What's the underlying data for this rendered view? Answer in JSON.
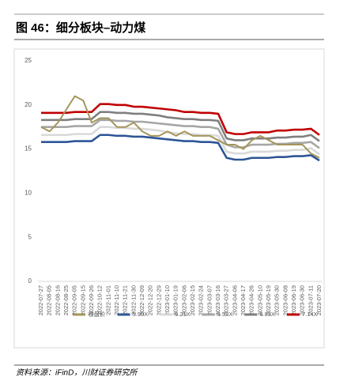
{
  "title": "图 46：细分板块–动力煤",
  "source": "资料来源：iFinD，川财证券研究所",
  "chart_data": {
    "type": "line",
    "categories": [
      "2022-07-27",
      "2022-08-05",
      "2022-08-16",
      "2022-08-25",
      "2022-09-05",
      "2022-09-15",
      "2022-09-26",
      "2022-10-12",
      "2022-11-01",
      "2022-11-10",
      "2022-11-21",
      "2022-11-30",
      "2022-12-09",
      "2022-12-20",
      "2022-12-29",
      "2023-01-10",
      "2023-01-19",
      "2023-02-06",
      "2023-02-15",
      "2023-02-24",
      "2023-03-07",
      "2023-03-16",
      "2023-03-27",
      "2023-04-06",
      "2023-04-17",
      "2023-04-26",
      "2023-05-10",
      "2023-05-19",
      "2023-05-30",
      "2023-06-08",
      "2023-06-19",
      "2023-06-30",
      "2023-07-11",
      "2023-07-20"
    ],
    "series": [
      {
        "name": "收盘价",
        "color": "#a5955a",
        "values": [
          17.5,
          17.0,
          18.0,
          19.5,
          21.0,
          20.5,
          18.0,
          18.5,
          18.5,
          17.5,
          17.5,
          18.0,
          17.0,
          16.5,
          16.5,
          17.0,
          16.5,
          17.0,
          16.5,
          16.5,
          16.5,
          16.0,
          15.5,
          15.5,
          15.0,
          16.0,
          16.5,
          16.0,
          15.5,
          15.5,
          15.5,
          15.5,
          14.5,
          14.0
        ]
      },
      {
        "name": "5.90X",
        "color": "#2e5597",
        "values": [
          15.8,
          15.8,
          15.8,
          15.8,
          15.9,
          15.9,
          15.9,
          16.6,
          16.6,
          16.5,
          16.5,
          16.4,
          16.4,
          16.3,
          16.2,
          16.1,
          16.0,
          15.9,
          15.9,
          15.8,
          15.8,
          15.7,
          14.0,
          13.8,
          13.8,
          14.0,
          14.0,
          14.0,
          14.1,
          14.1,
          14.2,
          14.2,
          14.3,
          13.7
        ]
      },
      {
        "name": "6.21X",
        "color": "#d9d9d9",
        "values": [
          16.6,
          16.6,
          16.6,
          16.6,
          16.7,
          16.7,
          16.7,
          17.5,
          17.5,
          17.4,
          17.4,
          17.3,
          17.3,
          17.2,
          17.1,
          16.9,
          16.8,
          16.7,
          16.7,
          16.6,
          16.6,
          16.5,
          14.7,
          14.5,
          14.5,
          14.7,
          14.7,
          14.7,
          14.8,
          14.8,
          14.9,
          14.9,
          15.1,
          14.4
        ]
      },
      {
        "name": "6.52X",
        "color": "#a6a6a6",
        "values": [
          17.5,
          17.5,
          17.5,
          17.5,
          17.6,
          17.6,
          17.6,
          18.3,
          18.3,
          18.2,
          18.2,
          18.1,
          18.1,
          18.0,
          17.9,
          17.8,
          17.7,
          17.6,
          17.6,
          17.5,
          17.5,
          17.3,
          15.5,
          15.2,
          15.2,
          15.5,
          15.5,
          15.5,
          15.6,
          15.6,
          15.7,
          15.7,
          15.8,
          15.1
        ]
      },
      {
        "name": "6.83X",
        "color": "#7f7f7f",
        "values": [
          18.3,
          18.3,
          18.3,
          18.3,
          18.4,
          18.4,
          18.4,
          19.2,
          19.2,
          19.1,
          19.1,
          19.0,
          19.0,
          18.9,
          18.8,
          18.6,
          18.5,
          18.4,
          18.4,
          18.3,
          18.3,
          18.2,
          16.2,
          16.0,
          16.0,
          16.2,
          16.2,
          16.2,
          16.3,
          16.3,
          16.4,
          16.4,
          16.6,
          15.9
        ]
      },
      {
        "name": "7.14X",
        "color": "#c00000",
        "values": [
          19.1,
          19.1,
          19.1,
          19.1,
          19.2,
          19.2,
          19.2,
          20.1,
          20.1,
          20.0,
          20.0,
          19.8,
          19.8,
          19.7,
          19.6,
          19.5,
          19.4,
          19.2,
          19.2,
          19.1,
          19.1,
          19.0,
          16.9,
          16.7,
          16.7,
          16.9,
          16.9,
          16.9,
          17.1,
          17.1,
          17.2,
          17.2,
          17.3,
          16.6
        ]
      }
    ],
    "ylim": [
      0,
      25
    ],
    "yticks": [
      0,
      5,
      10,
      15,
      20,
      25
    ]
  }
}
